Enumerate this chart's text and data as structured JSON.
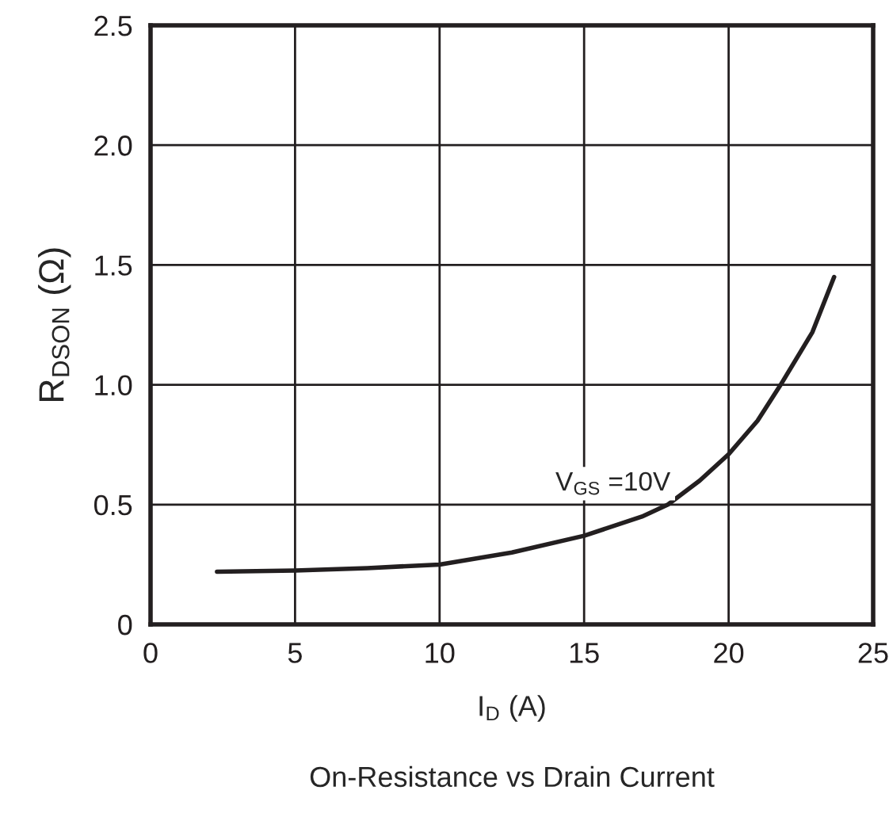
{
  "chart_data": {
    "type": "line",
    "title": "On-Resistance vs Drain Current",
    "xlabel": "I$_{D}$ (A)",
    "ylabel": "R$_{DSON}$ (Ω)",
    "annotations": [
      "V$_{GS}$ =10V"
    ],
    "series": [
      {
        "color": "#231f20",
        "x": [
          2.3,
          5,
          7.5,
          10,
          12.5,
          15,
          17,
          17.9,
          19,
          20,
          21,
          21.8,
          22.9,
          23.65
        ],
        "values": [
          0.22,
          0.225,
          0.235,
          0.25,
          0.3,
          0.37,
          0.45,
          0.5,
          0.6,
          0.71,
          0.85,
          1.0,
          1.22,
          1.45
        ]
      }
    ],
    "xlim": [
      0,
      25
    ],
    "xticks": [
      0,
      5,
      10,
      15,
      20,
      25
    ],
    "ylim": [
      0,
      2.5
    ],
    "yticks": [
      {
        "value": 0,
        "label": "0"
      },
      {
        "value": 0.5,
        "label": "0.5"
      },
      {
        "value": 1.0,
        "label": "1.0"
      },
      {
        "value": 1.5,
        "label": "1.5"
      },
      {
        "value": 2.0,
        "label": "2.0"
      },
      {
        "value": 2.5,
        "label": "2.5"
      }
    ],
    "grid": true,
    "marker": "none",
    "line_style": "solid"
  }
}
